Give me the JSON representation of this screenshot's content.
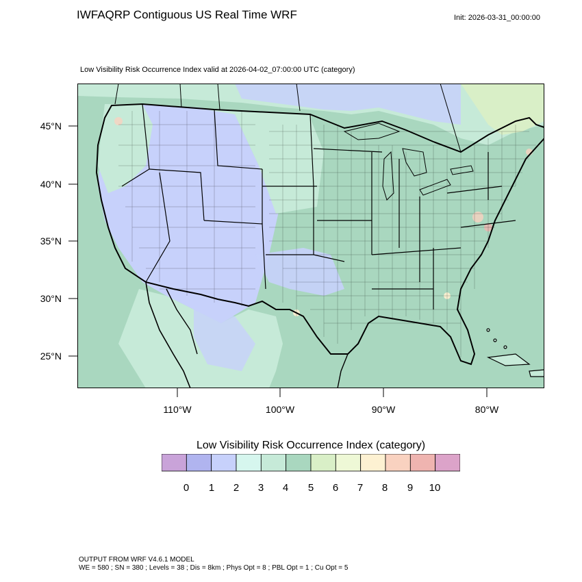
{
  "title": "IWFAQRP Contiguous US Real Time WRF",
  "init": "Init: 2026-03-31_00:00:00",
  "subtitle": "Low Visibility Risk Occurrence Index valid at 2026-04-02_07:00:00 UTC   (category)",
  "lat_labels": [
    "45°N",
    "40°N",
    "35°N",
    "30°N",
    "25°N"
  ],
  "lon_labels": [
    "110°W",
    "100°W",
    "90°W",
    "80°W"
  ],
  "colorbar": {
    "title": "Low Visibility Risk Occurrence Index  (category)",
    "colors": [
      "#c9a3d9",
      "#b0b4ef",
      "#c7d1fb",
      "#d6f6ee",
      "#c6ead8",
      "#a9d7bf",
      "#d9efc7",
      "#eef8d6",
      "#fdf1d2",
      "#f9d2c0",
      "#efb4b0",
      "#dca3c9"
    ],
    "labels": [
      "0",
      "1",
      "2",
      "3",
      "4",
      "5",
      "6",
      "7",
      "8",
      "9",
      "10"
    ]
  },
  "footer": {
    "line1": "OUTPUT FROM WRF V4.6.1 MODEL",
    "line2": "WE = 580 ; SN = 380 ; Levels = 38 ; Dis = 8km ; Phys Opt = 8 ; PBL Opt = 1 ; Cu Opt = 5"
  }
}
